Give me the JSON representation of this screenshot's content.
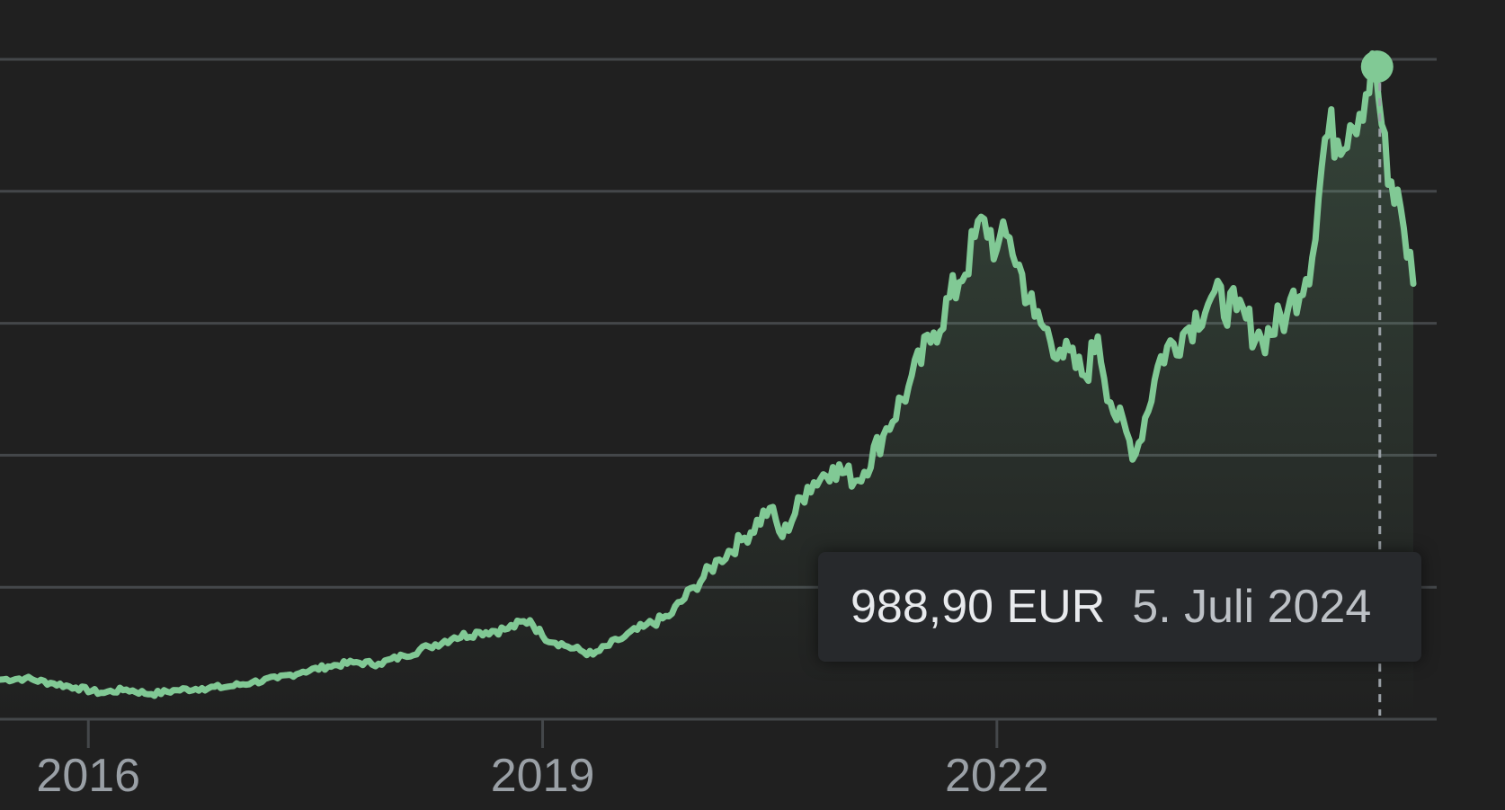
{
  "chart_data": {
    "type": "area",
    "currency": "EUR",
    "line_color": "#81c995",
    "background_color": "#202020",
    "grid": true,
    "x_ticks": [
      "2016",
      "2019",
      "2022"
    ],
    "x_range": [
      "2015-06",
      "2024-10"
    ],
    "y_range": [
      0,
      1000
    ],
    "series": [
      {
        "values": [
          [
            "2015-06",
            60
          ],
          [
            "2015-08",
            62
          ],
          [
            "2015-10",
            55
          ],
          [
            "2015-12",
            48
          ],
          [
            "2016-02",
            40
          ],
          [
            "2016-04",
            45
          ],
          [
            "2016-06",
            38
          ],
          [
            "2016-08",
            44
          ],
          [
            "2016-10",
            47
          ],
          [
            "2016-12",
            49
          ],
          [
            "2017-02",
            56
          ],
          [
            "2017-04",
            62
          ],
          [
            "2017-06",
            72
          ],
          [
            "2017-08",
            80
          ],
          [
            "2017-10",
            86
          ],
          [
            "2017-12",
            84
          ],
          [
            "2018-02",
            96
          ],
          [
            "2018-04",
            110
          ],
          [
            "2018-06",
            124
          ],
          [
            "2018-08",
            132
          ],
          [
            "2018-10",
            136
          ],
          [
            "2018-12",
            150
          ],
          [
            "2019-01",
            126
          ],
          [
            "2019-03",
            110
          ],
          [
            "2019-05",
            98
          ],
          [
            "2019-07",
            120
          ],
          [
            "2019-09",
            140
          ],
          [
            "2019-11",
            156
          ],
          [
            "2020-01",
            200
          ],
          [
            "2020-03",
            242
          ],
          [
            "2020-05",
            275
          ],
          [
            "2020-07",
            320
          ],
          [
            "2020-08",
            276
          ],
          [
            "2020-10",
            352
          ],
          [
            "2020-12",
            382
          ],
          [
            "2021-02",
            362
          ],
          [
            "2021-04",
            430
          ],
          [
            "2021-06",
            504
          ],
          [
            "2021-08",
            586
          ],
          [
            "2021-10",
            662
          ],
          [
            "2021-12",
            758
          ],
          [
            "2022-01",
            712
          ],
          [
            "2022-02",
            730
          ],
          [
            "2022-04",
            610
          ],
          [
            "2022-06",
            560
          ],
          [
            "2022-08",
            520
          ],
          [
            "2022-09",
            580
          ],
          [
            "2022-10",
            480
          ],
          [
            "2022-12",
            402
          ],
          [
            "2023-02",
            550
          ],
          [
            "2023-04",
            590
          ],
          [
            "2023-06",
            640
          ],
          [
            "2023-08",
            620
          ],
          [
            "2023-10",
            575
          ],
          [
            "2023-12",
            615
          ],
          [
            "2024-02",
            700
          ],
          [
            "2024-03",
            880
          ],
          [
            "2024-05",
            900
          ],
          [
            "2024-07",
            989
          ],
          [
            "2024-08",
            810
          ],
          [
            "2024-09",
            775
          ],
          [
            "2024-10",
            660
          ]
        ]
      }
    ],
    "highlight": {
      "x": "2024-07-05",
      "y": 988.9
    }
  },
  "tooltip": {
    "value_text": "988,90 EUR",
    "date_text": "5. Juli 2024"
  }
}
